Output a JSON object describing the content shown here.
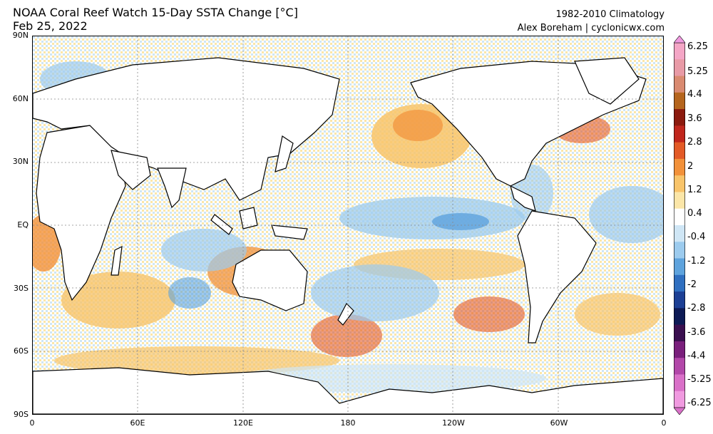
{
  "header": {
    "title": "NOAA Coral Reef Watch 15-Day SSTA Change [°C]",
    "date": "Feb 25, 2022",
    "climatology": "1982-2010 Climatology",
    "credit": "Alex Boreham | cyclonicwx.com"
  },
  "map": {
    "lat_labels": [
      "90N",
      "60N",
      "30N",
      "EQ",
      "30S",
      "60S",
      "90S"
    ],
    "lon_labels": [
      "0",
      "60E",
      "120E",
      "180",
      "120W",
      "60W",
      "0"
    ],
    "land_color": "#ffffff",
    "coast_color": "#000000"
  },
  "colorbar": {
    "labels": [
      "6.25",
      "5.25",
      "4.4",
      "3.6",
      "2.8",
      "2",
      "1.2",
      "0.4",
      "-0.4",
      "-1.2",
      "-2",
      "-2.8",
      "-3.6",
      "-4.4",
      "-5.25",
      "-6.25"
    ],
    "colors": [
      "#f4a6c6",
      "#e89aa6",
      "#d98a70",
      "#b5651d",
      "#8b1a0e",
      "#c0261c",
      "#e35a26",
      "#f2913a",
      "#f8c46a",
      "#fbe6a8",
      "#ffffff",
      "#cfe6f5",
      "#9ccbee",
      "#5ea3dd",
      "#2f6fc0",
      "#1c3f94",
      "#0d1a55",
      "#3a0f4f",
      "#7a1f7c",
      "#b247a9",
      "#d970c8",
      "#f09ae0"
    ]
  }
}
